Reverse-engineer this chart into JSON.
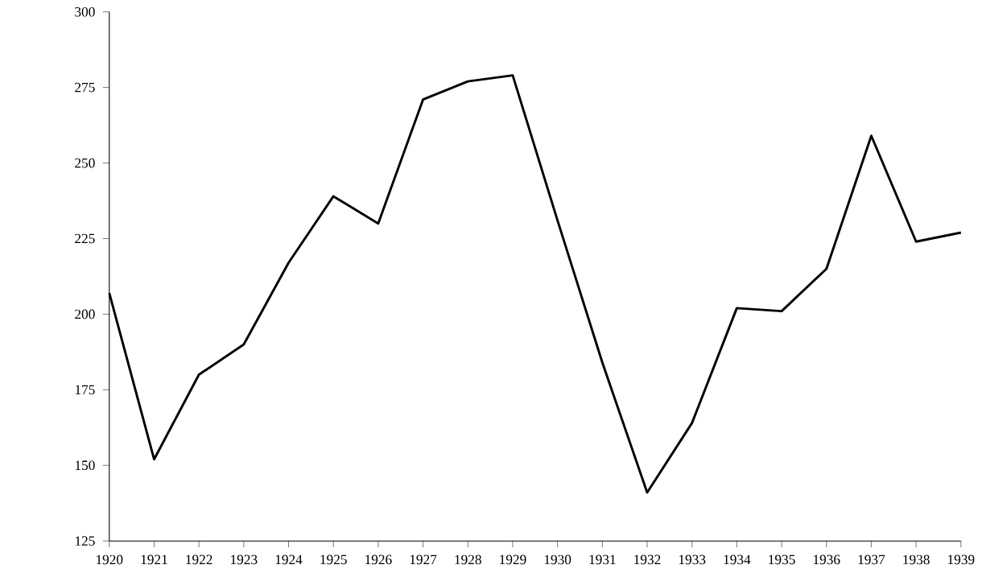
{
  "chart_data": {
    "type": "line",
    "categories": [
      "1920",
      "1921",
      "1922",
      "1923",
      "1924",
      "1925",
      "1926",
      "1927",
      "1928",
      "1929",
      "1930",
      "1931",
      "1932",
      "1933",
      "1934",
      "1935",
      "1936",
      "1937",
      "1938",
      "1939"
    ],
    "values": [
      207,
      152,
      180,
      190,
      217,
      239,
      230,
      271,
      277,
      279,
      231,
      184,
      141,
      164,
      202,
      201,
      215,
      259,
      224,
      227
    ],
    "color": "#000000",
    "ylim": [
      125,
      300
    ],
    "yticks": [
      125,
      150,
      175,
      200,
      225,
      250,
      275,
      300
    ],
    "grid": false,
    "marker": "none",
    "line_style": "solid"
  }
}
